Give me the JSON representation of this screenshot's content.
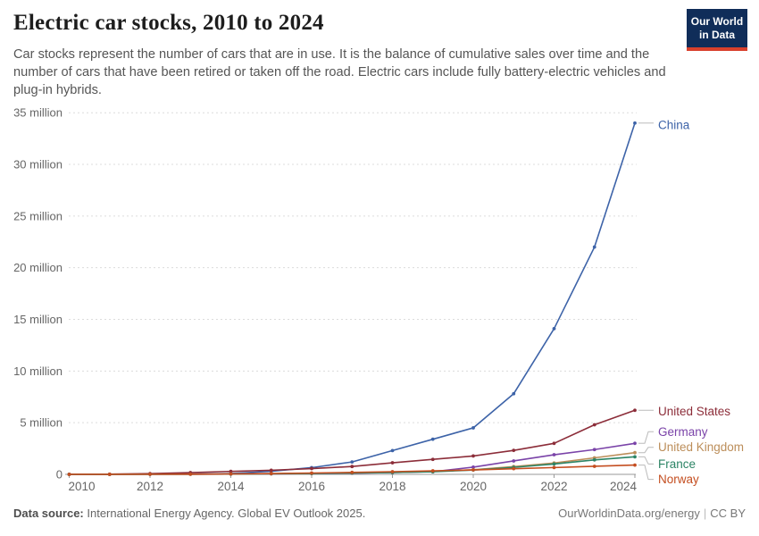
{
  "header": {
    "title": "Electric car stocks, 2010 to 2024",
    "subtitle": "Car stocks represent the number of cars that are in use. It is the balance of cumulative sales over time and the number of cars that have been retired or taken off the road. Electric cars include fully battery-electric vehicles and plug-in hybrids."
  },
  "logo": {
    "line1": "Our World",
    "line2": "in Data",
    "bg_color": "#102D59",
    "accent_color": "#D8402C"
  },
  "footer": {
    "source_label": "Data source:",
    "source_text": " International Energy Agency. Global EV Outlook 2025.",
    "site": "OurWorldinData.org/energy",
    "divider": "|",
    "license": "CC BY"
  },
  "chart_data": {
    "type": "line",
    "title": "Electric car stocks, 2010 to 2024",
    "xlabel": "",
    "ylabel": "",
    "x": [
      2010,
      2011,
      2012,
      2013,
      2014,
      2015,
      2016,
      2017,
      2018,
      2019,
      2020,
      2021,
      2022,
      2023,
      2024
    ],
    "xticks": [
      2010,
      2012,
      2014,
      2016,
      2018,
      2020,
      2022,
      2024
    ],
    "ytick_values": [
      0,
      5,
      10,
      15,
      20,
      25,
      30,
      35
    ],
    "ytick_unit": "million",
    "ylim": [
      0,
      35
    ],
    "xlim": [
      2010,
      2024
    ],
    "grid": "horizontal dashed",
    "legend_position": "right end-of-line labels",
    "axis_color": "#999999",
    "grid_color": "#dcdcdc",
    "tick_label_color": "#666666",
    "connector_color": "#bbbbbb",
    "series": [
      {
        "name": "China",
        "color": "#3D63A8",
        "label_dy": 2,
        "values": [
          0.005,
          0.01,
          0.02,
          0.03,
          0.08,
          0.3,
          0.65,
          1.2,
          2.3,
          3.4,
          4.5,
          7.8,
          14.1,
          22,
          34
        ]
      },
      {
        "name": "United States",
        "color": "#8C2D39",
        "label_dy": 1,
        "values": [
          0.004,
          0.02,
          0.07,
          0.17,
          0.29,
          0.4,
          0.56,
          0.76,
          1.12,
          1.45,
          1.78,
          2.32,
          3.0,
          4.8,
          6.2
        ]
      },
      {
        "name": "Germany",
        "color": "#7A43A8",
        "label_dy": -13,
        "values": [
          0.002,
          0.005,
          0.01,
          0.02,
          0.03,
          0.05,
          0.08,
          0.11,
          0.18,
          0.26,
          0.7,
          1.3,
          1.9,
          2.4,
          3.0
        ]
      },
      {
        "name": "United Kingdom",
        "color": "#BC8E5A",
        "label_dy": -6,
        "values": [
          0.002,
          0.003,
          0.007,
          0.01,
          0.03,
          0.06,
          0.09,
          0.14,
          0.2,
          0.28,
          0.45,
          0.75,
          1.1,
          1.6,
          2.1
        ]
      },
      {
        "name": "France",
        "color": "#2C8465",
        "label_dy": 8,
        "values": [
          0.0003,
          0.003,
          0.01,
          0.02,
          0.03,
          0.06,
          0.09,
          0.13,
          0.18,
          0.25,
          0.42,
          0.68,
          1.0,
          1.4,
          1.7
        ]
      },
      {
        "name": "Norway",
        "color": "#C44E20",
        "label_dy": 16,
        "values": [
          0.003,
          0.005,
          0.01,
          0.02,
          0.04,
          0.08,
          0.13,
          0.19,
          0.26,
          0.34,
          0.43,
          0.55,
          0.66,
          0.78,
          0.9
        ]
      }
    ]
  }
}
